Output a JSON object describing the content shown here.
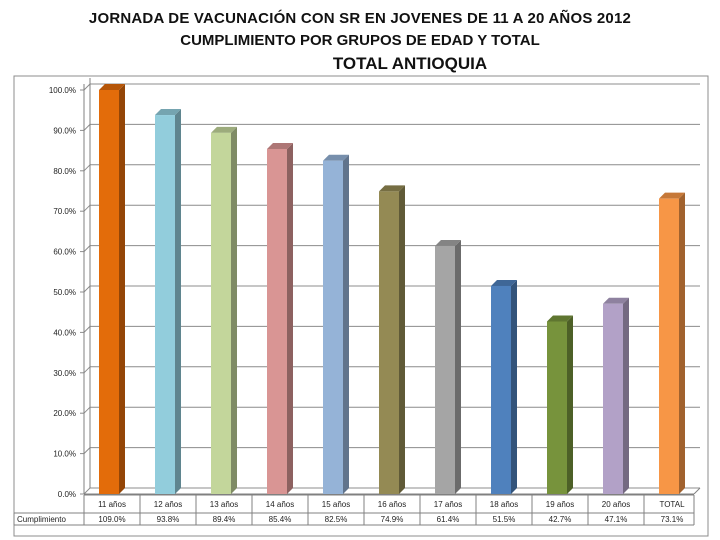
{
  "chart_data": {
    "type": "bar",
    "title": [
      "JORNADA DE VACUNACIÓN CON SR EN JOVENES DE 11 A 20 AÑOS 2012",
      "CUMPLIMIENTO POR GRUPOS DE EDAD Y TOTAL",
      "TOTAL ANTIOQUIA"
    ],
    "categories": [
      "11 años",
      "12 años",
      "13 años",
      "14 años",
      "15 años",
      "16 años",
      "17 años",
      "18 años",
      "19 años",
      "20 años",
      "TOTAL"
    ],
    "series": [
      {
        "name": "Cumplimiento",
        "values": [
          109.0,
          93.8,
          89.4,
          85.4,
          82.5,
          74.9,
          61.4,
          51.5,
          42.7,
          47.1,
          73.1
        ],
        "value_labels": [
          "109.0%",
          "93.8%",
          "89.4%",
          "85.4%",
          "82.5%",
          "74.9%",
          "61.4%",
          "51.5%",
          "42.7%",
          "47.1%",
          "73.1%"
        ]
      }
    ],
    "colors": [
      "#e36c0a",
      "#92cddc",
      "#c3d69b",
      "#d99594",
      "#95b3d7",
      "#948a54",
      "#a5a5a5",
      "#4f81bd",
      "#77933c",
      "#b2a1c7",
      "#f79646"
    ],
    "ylim": [
      0,
      100
    ],
    "yticks": [
      0,
      10,
      20,
      30,
      40,
      50,
      60,
      70,
      80,
      90,
      100
    ],
    "ytick_labels": [
      "0.0%",
      "10.0%",
      "20.0%",
      "30.0%",
      "40.0%",
      "50.0%",
      "60.0%",
      "70.0%",
      "80.0%",
      "90.0%",
      "100.0%"
    ],
    "grid": true,
    "legend": "data-table below chart",
    "bar_style": "3d"
  }
}
